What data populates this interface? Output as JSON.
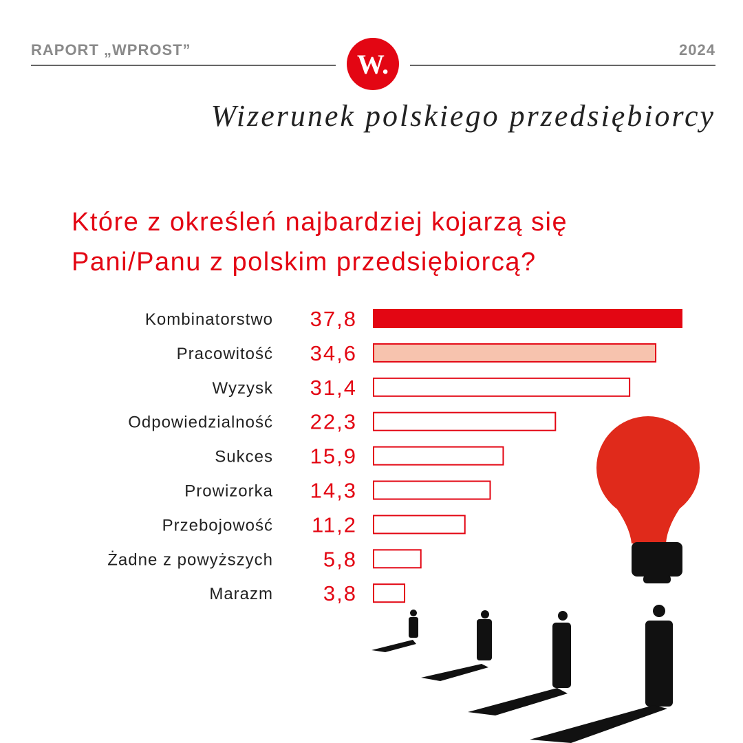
{
  "header": {
    "left": "RAPORT „WPROST”",
    "right": "2024",
    "logo": "W.",
    "subtitle": "Wizerunek polskiego przedsiębiorcy"
  },
  "chart_data": {
    "type": "hbar",
    "title": [
      "Które z określeń najbardziej kojarzą się",
      "Pani/Panu z polskim przedsiębiorcą?"
    ],
    "categories": [
      "Kombinatorstwo",
      "Pracowitość",
      "Wyzysk",
      "Odpowiedzialność",
      "Sukces",
      "Prowizorka",
      "Przebojowość",
      "Żadne z powyższych",
      "Marazm"
    ],
    "values": [
      37.8,
      34.6,
      31.4,
      22.3,
      15.9,
      14.3,
      11.2,
      5.8,
      3.8
    ],
    "value_labels": [
      "37,8",
      "34,6",
      "31,4",
      "22,3",
      "15,9",
      "14,3",
      "11,2",
      "5,8",
      "3,8"
    ],
    "colors": [
      "#e30613",
      "#f7c3ae",
      "#ffffff",
      "#ffffff",
      "#ffffff",
      "#ffffff",
      "#ffffff",
      "#ffffff",
      "#ffffff"
    ],
    "edge_color": "#e30613"
  }
}
